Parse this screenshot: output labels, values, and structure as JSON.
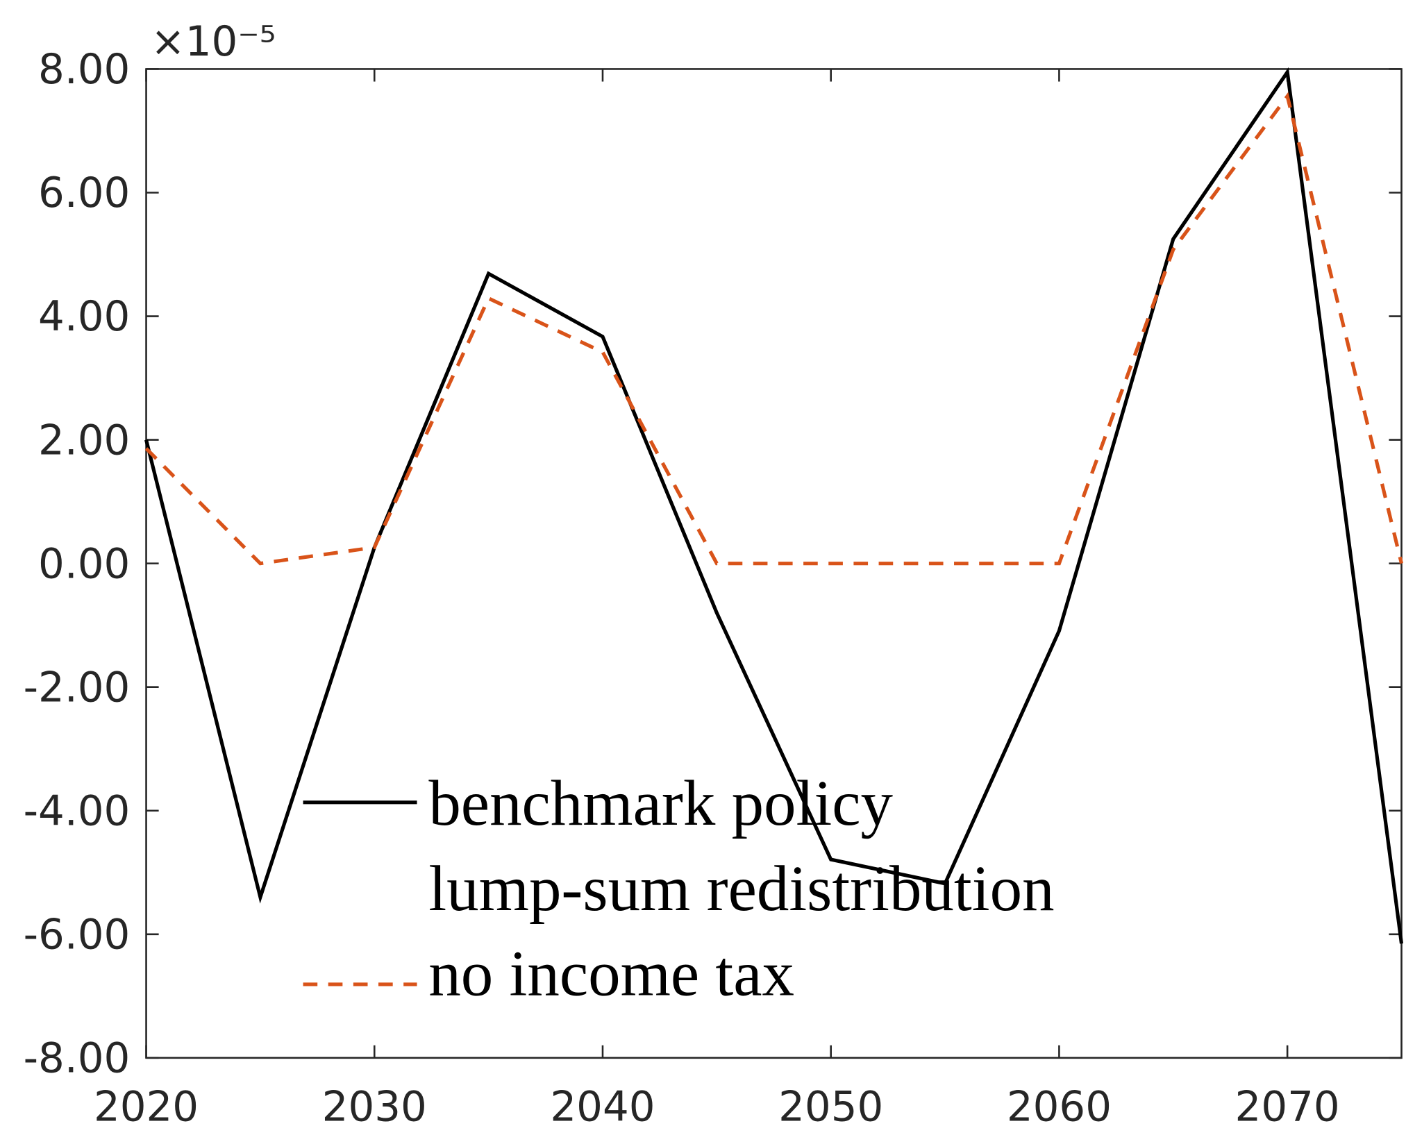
{
  "chart_data": {
    "type": "line",
    "y_multiplier": "×10⁻⁵",
    "x": [
      2020,
      2025,
      2030,
      2035,
      2040,
      2045,
      2050,
      2055,
      2060,
      2065,
      2070,
      2075
    ],
    "series": [
      {
        "name": "benchmark policy",
        "color": "#000000",
        "dash": false,
        "values": [
          2.0,
          -5.4,
          0.26,
          4.69,
          3.67,
          -0.8,
          -4.79,
          -5.18,
          -1.09,
          5.25,
          7.95,
          -6.15
        ]
      },
      {
        "name": "lump-sum redistribution\nno income tax",
        "color": "#d95319",
        "dash": true,
        "values": [
          1.86,
          0,
          0.26,
          4.29,
          3.42,
          0,
          0,
          0,
          0,
          5.08,
          7.56,
          0
        ]
      }
    ],
    "xlim": [
      2020,
      2075
    ],
    "xticks": [
      2020,
      2030,
      2040,
      2050,
      2060,
      2070
    ],
    "ylim": [
      -8,
      8
    ],
    "yticks": [
      {
        "value": -8,
        "label": "-8.00"
      },
      {
        "value": -6,
        "label": "-6.00"
      },
      {
        "value": -4,
        "label": "-4.00"
      },
      {
        "value": -2,
        "label": "-2.00"
      },
      {
        "value": 0,
        "label": "0.00"
      },
      {
        "value": 2,
        "label": "2.00"
      },
      {
        "value": 4,
        "label": "4.00"
      },
      {
        "value": 6,
        "label": "6.00"
      },
      {
        "value": 8,
        "label": "8.00"
      }
    ],
    "grid": false
  }
}
